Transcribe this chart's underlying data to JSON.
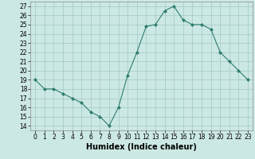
{
  "x": [
    0,
    1,
    2,
    3,
    4,
    5,
    6,
    7,
    8,
    9,
    10,
    11,
    12,
    13,
    14,
    15,
    16,
    17,
    18,
    19,
    20,
    21,
    22,
    23
  ],
  "y": [
    19,
    18,
    18,
    17.5,
    17,
    16.5,
    15.5,
    15,
    14,
    16,
    19.5,
    22,
    24.8,
    25,
    26.5,
    27,
    25.5,
    25,
    25,
    24.5,
    22,
    21,
    20,
    19
  ],
  "line_color": "#2e7d6e",
  "marker": "D",
  "marker_size": 2,
  "bg_color": "#cce8e4",
  "grid_color": "#a0c8c4",
  "xlabel": "Humidex (Indice chaleur)",
  "xlabel_fontsize": 7,
  "ylim": [
    13.5,
    27.5
  ],
  "yticks": [
    14,
    15,
    16,
    17,
    18,
    19,
    20,
    21,
    22,
    23,
    24,
    25,
    26,
    27
  ],
  "xticks": [
    0,
    1,
    2,
    3,
    4,
    5,
    6,
    7,
    8,
    9,
    10,
    11,
    12,
    13,
    14,
    15,
    16,
    17,
    18,
    19,
    20,
    21,
    22,
    23
  ],
  "xlim": [
    -0.5,
    23.5
  ],
  "tick_fontsize": 5.5
}
